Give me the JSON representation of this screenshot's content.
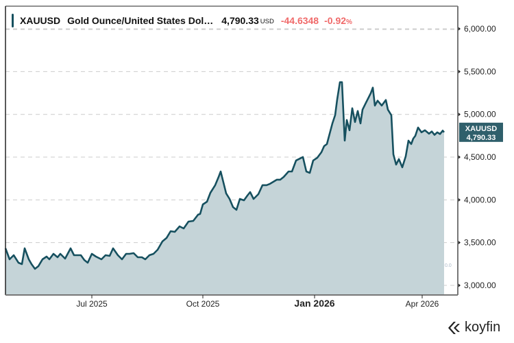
{
  "header": {
    "symbol": "XAUUSD",
    "name": "Gold Ounce/United States Dol…",
    "price": "4,790.33",
    "currency": "USD",
    "change": "-44.6348",
    "change_pct": "-0.92",
    "pct_sign": "%"
  },
  "colors": {
    "line": "#16505f",
    "fill": "#c5d4d8",
    "accent_bar": "#16505f",
    "negative": "#f06a6a",
    "grid": "#cccccc",
    "axis": "#777777",
    "badge_bg": "#2f5f6b",
    "badge_text": "#ffffff"
  },
  "last_price_badge": {
    "symbol": "XAUUSD",
    "value": "4,790.33"
  },
  "secondary_axis_label": "0.0",
  "logo": {
    "text": "koyfin"
  },
  "chart_data": {
    "type": "area",
    "title": "XAUUSD Gold Ounce/United States Dollar",
    "xlabel": "",
    "ylabel": "",
    "ylim": [
      2900,
      6250
    ],
    "y_ticks": [
      3000,
      3500,
      4000,
      4500,
      5000,
      5500,
      6000
    ],
    "y_tick_labels": [
      "3,000.00",
      "3,500.00",
      "4,000.00",
      "4,500.00",
      "5,000.00",
      "5,500.00",
      "6,000.00"
    ],
    "x_ticks": [
      {
        "label": "Jul 2025",
        "t": 0.1904,
        "bold": false
      },
      {
        "label": "Oct 2025",
        "t": 0.4316,
        "bold": false
      },
      {
        "label": "Jan 2026",
        "t": 0.6741,
        "bold": true
      },
      {
        "label": "Apr 2026",
        "t": 0.908,
        "bold": false
      }
    ],
    "grid": true,
    "y_axis_side": "right",
    "last_value": 4790.33,
    "series": [
      {
        "name": "XAUUSD",
        "t": [
          0.0,
          0.0089,
          0.0179,
          0.0283,
          0.0357,
          0.0417,
          0.0506,
          0.0565,
          0.064,
          0.0714,
          0.0804,
          0.0893,
          0.0952,
          0.1042,
          0.1131,
          0.119,
          0.1295,
          0.1414,
          0.1488,
          0.1533,
          0.1637,
          0.1711,
          0.1786,
          0.1875,
          0.1964,
          0.1994,
          0.2083,
          0.2173,
          0.2262,
          0.2336,
          0.244,
          0.253,
          0.2619,
          0.2693,
          0.2783,
          0.2872,
          0.2961,
          0.3036,
          0.3125,
          0.3214,
          0.3304,
          0.3408,
          0.3497,
          0.3586,
          0.3676,
          0.378,
          0.3869,
          0.3973,
          0.4077,
          0.4182,
          0.4226,
          0.4286,
          0.4375,
          0.4449,
          0.4554,
          0.4628,
          0.4673,
          0.4732,
          0.4792,
          0.4866,
          0.494,
          0.5015,
          0.5089,
          0.5179,
          0.5253,
          0.5313,
          0.5387,
          0.5491,
          0.558,
          0.567,
          0.5744,
          0.5818,
          0.5893,
          0.5967,
          0.6042,
          0.6146,
          0.622,
          0.631,
          0.6369,
          0.6458,
          0.6533,
          0.6607,
          0.6682,
          0.6771,
          0.686,
          0.692,
          0.6979,
          0.7039,
          0.7098,
          0.7158,
          0.7202,
          0.7262,
          0.7307,
          0.7366,
          0.7411,
          0.747,
          0.753,
          0.7589,
          0.7649,
          0.7708,
          0.7753,
          0.7827,
          0.7887,
          0.7932,
          0.7976,
          0.8021,
          0.808,
          0.817,
          0.8259,
          0.8304,
          0.8378,
          0.8423,
          0.8482,
          0.8542,
          0.8616,
          0.869,
          0.875,
          0.881,
          0.8854,
          0.8899,
          0.8958,
          0.9033,
          0.9107,
          0.9196,
          0.9256,
          0.9315,
          0.9375,
          0.9435,
          0.9494,
          0.9524
        ],
        "values": [
          3433,
          3305,
          3353,
          3265,
          3249,
          3433,
          3305,
          3249,
          3193,
          3225,
          3305,
          3337,
          3305,
          3369,
          3329,
          3369,
          3313,
          3433,
          3353,
          3353,
          3353,
          3297,
          3265,
          3369,
          3337,
          3329,
          3305,
          3353,
          3345,
          3433,
          3353,
          3305,
          3369,
          3369,
          3377,
          3329,
          3329,
          3305,
          3353,
          3369,
          3417,
          3514,
          3554,
          3634,
          3626,
          3690,
          3666,
          3746,
          3754,
          3827,
          3835,
          3947,
          3979,
          4083,
          4172,
          4268,
          4332,
          4204,
          4076,
          4011,
          3915,
          3883,
          4011,
          3995,
          4051,
          4091,
          4011,
          4067,
          4172,
          4172,
          4188,
          4212,
          4236,
          4236,
          4268,
          4332,
          4332,
          4461,
          4477,
          4501,
          4332,
          4316,
          4461,
          4493,
          4557,
          4629,
          4653,
          4774,
          4894,
          4990,
          5175,
          5376,
          5376,
          4693,
          4934,
          4814,
          5071,
          4910,
          5039,
          4894,
          5055,
          5136,
          5200,
          5248,
          5313,
          5103,
          5160,
          5103,
          5168,
          5055,
          4990,
          4533,
          4413,
          4477,
          4381,
          4509,
          4693,
          4653,
          4717,
          4749,
          4846,
          4790,
          4814,
          4774,
          4800,
          4760,
          4790,
          4770,
          4810,
          4790.33
        ]
      }
    ]
  }
}
